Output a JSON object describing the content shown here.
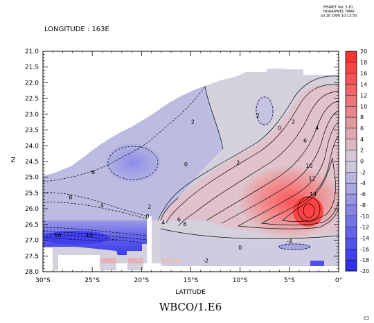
{
  "ferret": {
    "line1": "FERRET Ver. 5.81",
    "line2": "NOAA/PMEL TMAP",
    "line3": "Jul 28 2006 10:13:50"
  },
  "header_label": "LONGITUDE : 163E",
  "bottom_title": "WBCO/1.E6",
  "chart_data": {
    "type": "contour",
    "title": "WBCO/1.E6",
    "subtitle": "LONGITUDE : 163E",
    "xlabel": "LATITUDE",
    "ylabel": "Z",
    "x_ticks": [
      "30°S",
      "25°S",
      "20°S",
      "15°S",
      "10°S",
      "5°S",
      "0°"
    ],
    "x_tick_values": [
      -30,
      -25,
      -20,
      -15,
      -10,
      -5,
      0
    ],
    "xlim": [
      -30,
      0
    ],
    "y_ticks": [
      "21.0",
      "21.5",
      "22.0",
      "22.5",
      "23.0",
      "23.5",
      "24.0",
      "24.5",
      "25.0",
      "25.5",
      "26.0",
      "26.5",
      "27.0",
      "27.5",
      "28.0"
    ],
    "y_tick_values": [
      21.0,
      21.5,
      22.0,
      22.5,
      23.0,
      23.5,
      24.0,
      24.5,
      25.0,
      25.5,
      26.0,
      26.5,
      27.0,
      27.5,
      28.0
    ],
    "ylim": [
      21.0,
      28.0
    ],
    "y_reversed": true,
    "colorbar": {
      "labels": [
        "20",
        "18",
        "16",
        "14",
        "12",
        "10",
        "8",
        "6",
        "4",
        "2",
        "0",
        "-2",
        "-4",
        "-6",
        "-8",
        "-10",
        "-12",
        "-14",
        "-16",
        "-18",
        "-20"
      ],
      "values": [
        20,
        18,
        16,
        14,
        12,
        10,
        8,
        6,
        4,
        2,
        0,
        -2,
        -4,
        -6,
        -8,
        -10,
        -12,
        -14,
        -16,
        -18,
        -20
      ],
      "max_color": "#ff2a2a",
      "zero_color": "#d4d0dc",
      "min_color": "#2828f0"
    },
    "contour_labels": [
      {
        "text": "16",
        "x": -28.5,
        "y": 26.9
      },
      {
        "text": "10",
        "x": -25.3,
        "y": 26.9
      },
      {
        "text": "8",
        "x": -27.2,
        "y": 25.7
      },
      {
        "text": "4",
        "x": -24.0,
        "y": 25.95
      },
      {
        "text": "6",
        "x": -24.9,
        "y": 24.9
      },
      {
        "text": "2",
        "x": -19.2,
        "y": 26.0
      },
      {
        "text": "0",
        "x": -19.4,
        "y": 26.3
      },
      {
        "text": "0",
        "x": -15.5,
        "y": 24.65
      },
      {
        "text": "2",
        "x": -14.8,
        "y": 23.3
      },
      {
        "text": "2",
        "x": -10.2,
        "y": 24.6
      },
      {
        "text": "2",
        "x": -8.2,
        "y": 23.1
      },
      {
        "text": "0",
        "x": -6.0,
        "y": 23.5
      },
      {
        "text": "2",
        "x": -4.6,
        "y": 23.3
      },
      {
        "text": "4",
        "x": -17.8,
        "y": 26.5
      },
      {
        "text": "6",
        "x": -16.2,
        "y": 26.4
      },
      {
        "text": "8",
        "x": -15.6,
        "y": 26.55
      },
      {
        "text": "6",
        "x": -3.4,
        "y": 23.9
      },
      {
        "text": "10",
        "x": -3.0,
        "y": 24.7
      },
      {
        "text": "12",
        "x": -2.7,
        "y": 25.1
      },
      {
        "text": "14",
        "x": -2.6,
        "y": 25.6
      },
      {
        "text": "4",
        "x": -2.2,
        "y": 23.5
      },
      {
        "text": "0",
        "x": -10.0,
        "y": 27.3
      },
      {
        "text": "-2",
        "x": -13.5,
        "y": 27.7
      },
      {
        "text": "-4",
        "x": -5.0,
        "y": 27.1
      }
    ]
  }
}
